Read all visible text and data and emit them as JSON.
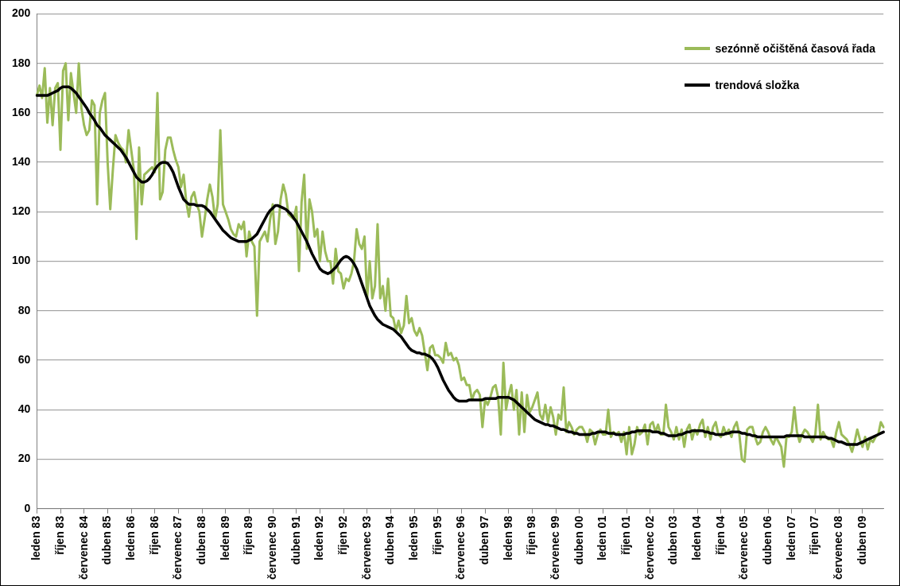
{
  "chart_data": {
    "type": "line",
    "categories": [
      "leden 83",
      null,
      null,
      null,
      null,
      null,
      null,
      null,
      null,
      "říjen 83",
      null,
      null,
      null,
      null,
      null,
      null,
      null,
      null,
      "červenec 84",
      null,
      null,
      null,
      null,
      null,
      null,
      null,
      null,
      "duben 85",
      null,
      null,
      null,
      null,
      null,
      null,
      null,
      null,
      "leden 86",
      null,
      null,
      null,
      null,
      null,
      null,
      null,
      null,
      "říjen 86",
      null,
      null,
      null,
      null,
      null,
      null,
      null,
      null,
      "červenec 87",
      null,
      null,
      null,
      null,
      null,
      null,
      null,
      null,
      "duben 88",
      null,
      null,
      null,
      null,
      null,
      null,
      null,
      null,
      "leden 89",
      null,
      null,
      null,
      null,
      null,
      null,
      null,
      null,
      "říjen 89",
      null,
      null,
      null,
      null,
      null,
      null,
      null,
      null,
      "červenec 90",
      null,
      null,
      null,
      null,
      null,
      null,
      null,
      null,
      "duben 91",
      null,
      null,
      null,
      null,
      null,
      null,
      null,
      null,
      "leden 92",
      null,
      null,
      null,
      null,
      null,
      null,
      null,
      null,
      "říjen 92",
      null,
      null,
      null,
      null,
      null,
      null,
      null,
      null,
      "červenec 93",
      null,
      null,
      null,
      null,
      null,
      null,
      null,
      null,
      "duben 94",
      null,
      null,
      null,
      null,
      null,
      null,
      null,
      null,
      "leden 95",
      null,
      null,
      null,
      null,
      null,
      null,
      null,
      null,
      "říjen 95",
      null,
      null,
      null,
      null,
      null,
      null,
      null,
      null,
      "červenec 96",
      null,
      null,
      null,
      null,
      null,
      null,
      null,
      null,
      "duben 97",
      null,
      null,
      null,
      null,
      null,
      null,
      null,
      null,
      "leden 98",
      null,
      null,
      null,
      null,
      null,
      null,
      null,
      null,
      "říjen 98",
      null,
      null,
      null,
      null,
      null,
      null,
      null,
      null,
      "červenec 99",
      null,
      null,
      null,
      null,
      null,
      null,
      null,
      null,
      "duben 00",
      null,
      null,
      null,
      null,
      null,
      null,
      null,
      null,
      "leden 01",
      null,
      null,
      null,
      null,
      null,
      null,
      null,
      null,
      "říjen 01",
      null,
      null,
      null,
      null,
      null,
      null,
      null,
      null,
      "červenec 02",
      null,
      null,
      null,
      null,
      null,
      null,
      null,
      null,
      "duben 03",
      null,
      null,
      null,
      null,
      null,
      null,
      null,
      null,
      "leden 04",
      null,
      null,
      null,
      null,
      null,
      null,
      null,
      null,
      "říjen 04",
      null,
      null,
      null,
      null,
      null,
      null,
      null,
      null,
      "červenec 05",
      null,
      null,
      null,
      null,
      null,
      null,
      null,
      null,
      "duben 06",
      null,
      null,
      null,
      null,
      null,
      null,
      null,
      null,
      "leden 07",
      null,
      null,
      null,
      null,
      null,
      null,
      null,
      null,
      "říjen 07",
      null,
      null,
      null,
      null,
      null,
      null,
      null,
      null,
      "červenec 08",
      null,
      null,
      null,
      null,
      null,
      null,
      null,
      null,
      "duben 09",
      null,
      null,
      null,
      null,
      null,
      null,
      null,
      null
    ],
    "series": [
      {
        "name": "sezónně očištěná časová řada",
        "color": "#9bbb59",
        "values": [
          167,
          171,
          166,
          178,
          156,
          170,
          155,
          170,
          172,
          145,
          177,
          180,
          157,
          176,
          168,
          160,
          180,
          162,
          155,
          151,
          153,
          165,
          163,
          123,
          160,
          165,
          168,
          140,
          121,
          137,
          151,
          148,
          146,
          145,
          140,
          153,
          145,
          137,
          109,
          146,
          123,
          135,
          136,
          137,
          138,
          136,
          168,
          125,
          128,
          145,
          150,
          150,
          145,
          141,
          138,
          130,
          135,
          124,
          118,
          126,
          128,
          123,
          120,
          110,
          117,
          125,
          131,
          126,
          117,
          123,
          153,
          123,
          120,
          117,
          113,
          111,
          110,
          115,
          113,
          116,
          102,
          112,
          108,
          106,
          78,
          108,
          110,
          112,
          108,
          117,
          123,
          107,
          112,
          125,
          131,
          127,
          119,
          118,
          117,
          122,
          96,
          124,
          135,
          105,
          125,
          120,
          110,
          113,
          100,
          112,
          104,
          100,
          100,
          91,
          105,
          96,
          95,
          89,
          93,
          92,
          95,
          100,
          113,
          107,
          105,
          110,
          85,
          100,
          85,
          90,
          115,
          85,
          90,
          80,
          93,
          78,
          77,
          72,
          76,
          71,
          74,
          86,
          75,
          77,
          72,
          70,
          73,
          70,
          63,
          56,
          65,
          66,
          62,
          62,
          61,
          59,
          67,
          62,
          63,
          60,
          61,
          58,
          52,
          53,
          50,
          50,
          44,
          47,
          48,
          46,
          33,
          44,
          42,
          45,
          49,
          50,
          45,
          30,
          59,
          40,
          46,
          50,
          40,
          48,
          30,
          47,
          31,
          46,
          39,
          41,
          44,
          47,
          38,
          36,
          42,
          35,
          41,
          37,
          30,
          38,
          36,
          49,
          31,
          35,
          33,
          30,
          32,
          33,
          33,
          31,
          27,
          32,
          31,
          26,
          30,
          32,
          30,
          30,
          40,
          29,
          31,
          30,
          31,
          27,
          31,
          22,
          33,
          22,
          26,
          33,
          30,
          31,
          34,
          26,
          34,
          35,
          31,
          34,
          30,
          30,
          42,
          33,
          31,
          28,
          33,
          28,
          32,
          25,
          32,
          34,
          28,
          32,
          30,
          34,
          36,
          29,
          33,
          28,
          33,
          35,
          30,
          29,
          33,
          30,
          32,
          29,
          33,
          35,
          30,
          20,
          19,
          32,
          33,
          33,
          29,
          26,
          27,
          31,
          33,
          31,
          28,
          26,
          29,
          27,
          25,
          17,
          29,
          29,
          31,
          41,
          31,
          27,
          30,
          32,
          31,
          29,
          27,
          30,
          42,
          28,
          31,
          29,
          28,
          28,
          25,
          31,
          35,
          30,
          29,
          28,
          26,
          23,
          27,
          32,
          28,
          25,
          29,
          24,
          28,
          27,
          29,
          30,
          35,
          33
        ]
      },
      {
        "name": "trendová složka",
        "color": "#000000",
        "values": [
          167,
          167,
          167,
          167,
          167,
          167.5,
          168,
          168.5,
          169,
          170,
          170.5,
          170.5,
          170.5,
          170,
          169,
          168,
          166.5,
          165,
          163.5,
          162,
          160,
          158.5,
          157,
          155,
          154,
          152.5,
          151,
          150,
          149,
          148,
          147,
          146,
          145,
          143.5,
          142,
          140,
          138,
          136,
          134,
          133,
          132,
          132,
          132.5,
          133.5,
          135,
          137,
          138.5,
          139.5,
          140,
          140,
          139.5,
          138,
          136,
          133,
          130,
          127.5,
          125,
          124,
          123,
          123,
          123,
          122.5,
          122.5,
          122.5,
          122,
          121,
          120,
          118.5,
          117,
          115.5,
          114,
          112.5,
          111.5,
          110.5,
          109.5,
          109,
          108.5,
          108,
          108,
          108,
          108,
          108.5,
          109,
          110,
          111,
          113,
          115,
          117,
          119,
          120.5,
          121.5,
          122.5,
          122.5,
          122,
          121.5,
          121,
          120,
          119,
          117.5,
          116,
          114,
          112,
          110,
          108,
          105.5,
          103,
          101,
          99,
          97,
          96,
          95.5,
          95,
          95.5,
          96.5,
          97.5,
          99,
          100.5,
          101.5,
          102,
          101.5,
          100.5,
          99,
          97,
          94,
          91,
          88,
          85,
          82,
          80,
          78,
          76.5,
          75.5,
          74.5,
          74,
          73.5,
          73,
          72.5,
          71.5,
          70.5,
          69.5,
          68,
          66.5,
          65,
          64,
          63.5,
          63,
          63,
          62.5,
          62.5,
          62,
          61.5,
          60.5,
          59,
          57,
          54.5,
          52,
          50,
          48,
          46.5,
          45,
          44,
          43.5,
          43.5,
          43.5,
          43.5,
          44,
          44,
          44,
          44,
          44,
          44,
          44.5,
          44.5,
          44.5,
          44.5,
          44.5,
          45,
          45,
          45,
          45,
          45,
          44.5,
          44,
          43,
          42,
          41,
          40,
          39,
          38,
          37,
          36,
          35.5,
          35,
          34.5,
          34,
          34,
          33.5,
          33.5,
          33,
          32.5,
          32,
          32,
          31.5,
          31,
          31,
          30.5,
          30.5,
          30,
          30,
          30,
          30,
          30,
          30.5,
          30.5,
          31,
          31,
          31,
          31,
          30.5,
          30.5,
          30.5,
          30,
          30,
          30,
          30,
          30.5,
          30.5,
          31,
          31,
          31.5,
          31.5,
          31.5,
          31.5,
          31.5,
          31.5,
          31,
          31,
          31,
          30.5,
          30.5,
          30,
          29.5,
          29.5,
          29.5,
          29.5,
          30,
          30,
          30.5,
          31,
          31,
          31.5,
          31.5,
          31.5,
          31.5,
          31.5,
          31,
          31,
          30.5,
          30.5,
          30,
          30,
          30,
          30,
          30.5,
          30.5,
          31,
          31,
          31,
          31,
          30.5,
          30.5,
          30,
          30,
          29.5,
          29.5,
          29,
          29,
          29,
          29,
          29,
          29,
          29,
          29,
          29,
          29,
          29,
          29.5,
          29.5,
          29.5,
          29.5,
          29.5,
          29.5,
          29.5,
          29,
          29,
          29,
          29,
          29,
          29,
          29,
          29,
          29,
          28.5,
          28.5,
          28,
          27.5,
          27,
          27,
          26.5,
          26,
          26,
          26,
          26,
          26,
          26.5,
          27,
          27.5,
          28,
          28.5,
          29,
          29.5,
          30,
          30.5,
          31
        ]
      }
    ],
    "ylim": [
      0,
      200
    ],
    "yticks": [
      0,
      20,
      40,
      60,
      80,
      100,
      120,
      140,
      160,
      180,
      200
    ],
    "grid": "y",
    "legend": "top right",
    "marker": "none",
    "line_style": "solid"
  }
}
